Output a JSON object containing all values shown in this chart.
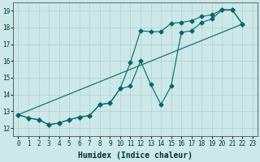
{
  "xlabel": "Humidex (Indice chaleur)",
  "xlim": [
    -0.5,
    23.5
  ],
  "ylim": [
    11.5,
    19.5
  ],
  "xticks": [
    0,
    1,
    2,
    3,
    4,
    5,
    6,
    7,
    8,
    9,
    10,
    11,
    12,
    13,
    14,
    15,
    16,
    17,
    18,
    19,
    20,
    21,
    22,
    23
  ],
  "yticks": [
    12,
    13,
    14,
    15,
    16,
    17,
    18,
    19
  ],
  "bg_color": "#cce8e8",
  "grid_color": "#b0d0d0",
  "line_color": "#006868",
  "curve1_x": [
    0,
    1,
    2,
    3,
    4,
    5,
    6,
    7,
    8,
    9,
    10,
    11,
    12,
    13,
    14,
    15,
    16,
    17,
    18,
    19,
    20,
    21,
    22
  ],
  "curve1_y": [
    12.8,
    12.6,
    12.5,
    12.2,
    12.3,
    12.5,
    12.65,
    12.75,
    13.4,
    13.5,
    14.35,
    15.9,
    17.8,
    17.75,
    17.75,
    18.25,
    18.3,
    18.4,
    18.65,
    18.75,
    19.05,
    19.05,
    18.2
  ],
  "curve2_x": [
    0,
    1,
    2,
    3,
    4,
    5,
    6,
    7,
    8,
    9,
    10,
    11,
    12,
    13,
    14,
    15,
    16,
    17,
    18,
    19,
    20,
    21,
    22
  ],
  "curve2_y": [
    12.8,
    12.6,
    12.5,
    12.2,
    12.3,
    12.5,
    12.65,
    12.75,
    13.4,
    13.5,
    14.35,
    14.5,
    16.0,
    14.6,
    13.4,
    14.5,
    17.7,
    17.8,
    18.3,
    18.5,
    19.05,
    19.05,
    18.2
  ],
  "curve3_x": [
    0,
    22
  ],
  "curve3_y": [
    12.8,
    18.2
  ]
}
